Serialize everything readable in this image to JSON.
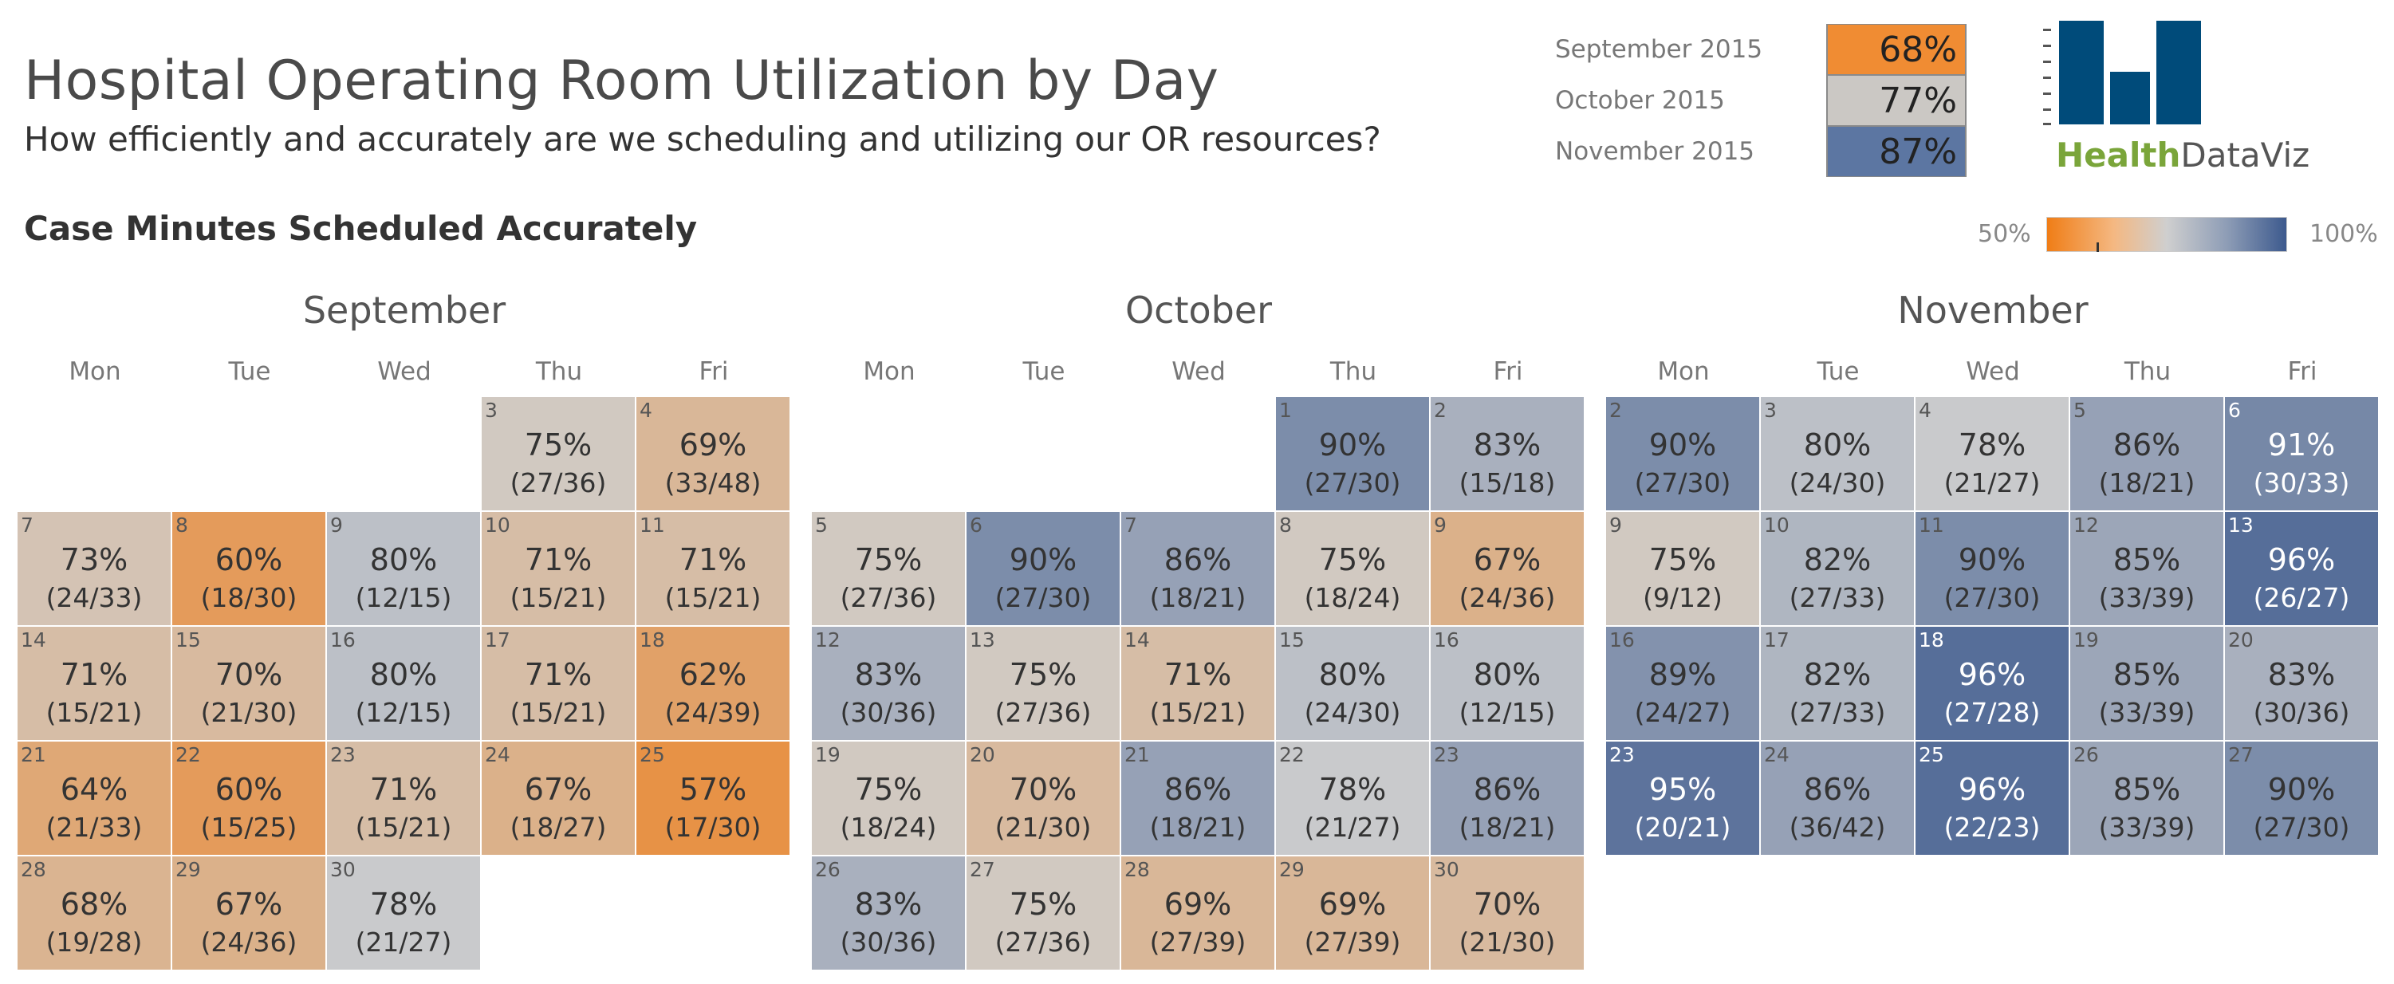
{
  "header": {
    "title": "Hospital Operating Room Utilization by Day",
    "subtitle": "How efficiently and accurately are we scheduling and utilizing our OR resources?",
    "section_title": "Case Minutes Scheduled Accurately"
  },
  "summary": [
    {
      "label": "September 2015",
      "value": "68%",
      "color": "#f08c33"
    },
    {
      "label": "October 2015",
      "value": "77%",
      "color": "#cbc8c4"
    },
    {
      "label": "November 2015",
      "value": "87%",
      "color": "#5c76a2"
    }
  ],
  "logo": {
    "word1": "Health",
    "word2": "DataViz",
    "bar_color": "#004b7a"
  },
  "legend": {
    "min_label": "50%",
    "max_label": "100%"
  },
  "weekdays": [
    "Mon",
    "Tue",
    "Wed",
    "Thu",
    "Fri"
  ],
  "colors": {
    "low": "#f07d16",
    "mid": "#cfcfcf",
    "high": "#3d5a8e"
  },
  "chart_data": {
    "type": "heatmap",
    "title": "Case Minutes Scheduled Accurately",
    "color_scale": [
      50,
      100
    ],
    "months": [
      {
        "name": "September",
        "days": [
          {
            "day": 3,
            "week": 0,
            "dow": 3,
            "pct": "75%",
            "value": 75,
            "frac": "(27/36)"
          },
          {
            "day": 4,
            "week": 0,
            "dow": 4,
            "pct": "69%",
            "value": 69,
            "frac": "(33/48)"
          },
          {
            "day": 7,
            "week": 1,
            "dow": 0,
            "pct": "73%",
            "value": 73,
            "frac": "(24/33)"
          },
          {
            "day": 8,
            "week": 1,
            "dow": 1,
            "pct": "60%",
            "value": 60,
            "frac": "(18/30)"
          },
          {
            "day": 9,
            "week": 1,
            "dow": 2,
            "pct": "80%",
            "value": 80,
            "frac": "(12/15)"
          },
          {
            "day": 10,
            "week": 1,
            "dow": 3,
            "pct": "71%",
            "value": 71,
            "frac": "(15/21)"
          },
          {
            "day": 11,
            "week": 1,
            "dow": 4,
            "pct": "71%",
            "value": 71,
            "frac": "(15/21)"
          },
          {
            "day": 14,
            "week": 2,
            "dow": 0,
            "pct": "71%",
            "value": 71,
            "frac": "(15/21)"
          },
          {
            "day": 15,
            "week": 2,
            "dow": 1,
            "pct": "70%",
            "value": 70,
            "frac": "(21/30)"
          },
          {
            "day": 16,
            "week": 2,
            "dow": 2,
            "pct": "80%",
            "value": 80,
            "frac": "(12/15)"
          },
          {
            "day": 17,
            "week": 2,
            "dow": 3,
            "pct": "71%",
            "value": 71,
            "frac": "(15/21)"
          },
          {
            "day": 18,
            "week": 2,
            "dow": 4,
            "pct": "62%",
            "value": 62,
            "frac": "(24/39)"
          },
          {
            "day": 21,
            "week": 3,
            "dow": 0,
            "pct": "64%",
            "value": 64,
            "frac": "(21/33)"
          },
          {
            "day": 22,
            "week": 3,
            "dow": 1,
            "pct": "60%",
            "value": 60,
            "frac": "(15/25)"
          },
          {
            "day": 23,
            "week": 3,
            "dow": 2,
            "pct": "71%",
            "value": 71,
            "frac": "(15/21)"
          },
          {
            "day": 24,
            "week": 3,
            "dow": 3,
            "pct": "67%",
            "value": 67,
            "frac": "(18/27)"
          },
          {
            "day": 25,
            "week": 3,
            "dow": 4,
            "pct": "57%",
            "value": 57,
            "frac": "(17/30)"
          },
          {
            "day": 28,
            "week": 4,
            "dow": 0,
            "pct": "68%",
            "value": 68,
            "frac": "(19/28)"
          },
          {
            "day": 29,
            "week": 4,
            "dow": 1,
            "pct": "67%",
            "value": 67,
            "frac": "(24/36)"
          },
          {
            "day": 30,
            "week": 4,
            "dow": 2,
            "pct": "78%",
            "value": 78,
            "frac": "(21/27)"
          }
        ]
      },
      {
        "name": "October",
        "days": [
          {
            "day": 1,
            "week": 0,
            "dow": 3,
            "pct": "90%",
            "value": 90,
            "frac": "(27/30)"
          },
          {
            "day": 2,
            "week": 0,
            "dow": 4,
            "pct": "83%",
            "value": 83,
            "frac": "(15/18)"
          },
          {
            "day": 5,
            "week": 1,
            "dow": 0,
            "pct": "75%",
            "value": 75,
            "frac": "(27/36)"
          },
          {
            "day": 6,
            "week": 1,
            "dow": 1,
            "pct": "90%",
            "value": 90,
            "frac": "(27/30)"
          },
          {
            "day": 7,
            "week": 1,
            "dow": 2,
            "pct": "86%",
            "value": 86,
            "frac": "(18/21)"
          },
          {
            "day": 8,
            "week": 1,
            "dow": 3,
            "pct": "75%",
            "value": 75,
            "frac": "(18/24)"
          },
          {
            "day": 9,
            "week": 1,
            "dow": 4,
            "pct": "67%",
            "value": 67,
            "frac": "(24/36)"
          },
          {
            "day": 12,
            "week": 2,
            "dow": 0,
            "pct": "83%",
            "value": 83,
            "frac": "(30/36)"
          },
          {
            "day": 13,
            "week": 2,
            "dow": 1,
            "pct": "75%",
            "value": 75,
            "frac": "(27/36)"
          },
          {
            "day": 14,
            "week": 2,
            "dow": 2,
            "pct": "71%",
            "value": 71,
            "frac": "(15/21)"
          },
          {
            "day": 15,
            "week": 2,
            "dow": 3,
            "pct": "80%",
            "value": 80,
            "frac": "(24/30)"
          },
          {
            "day": 16,
            "week": 2,
            "dow": 4,
            "pct": "80%",
            "value": 80,
            "frac": "(12/15)"
          },
          {
            "day": 19,
            "week": 3,
            "dow": 0,
            "pct": "75%",
            "value": 75,
            "frac": "(18/24)"
          },
          {
            "day": 20,
            "week": 3,
            "dow": 1,
            "pct": "70%",
            "value": 70,
            "frac": "(21/30)"
          },
          {
            "day": 21,
            "week": 3,
            "dow": 2,
            "pct": "86%",
            "value": 86,
            "frac": "(18/21)"
          },
          {
            "day": 22,
            "week": 3,
            "dow": 3,
            "pct": "78%",
            "value": 78,
            "frac": "(21/27)"
          },
          {
            "day": 23,
            "week": 3,
            "dow": 4,
            "pct": "86%",
            "value": 86,
            "frac": "(18/21)"
          },
          {
            "day": 26,
            "week": 4,
            "dow": 0,
            "pct": "83%",
            "value": 83,
            "frac": "(30/36)"
          },
          {
            "day": 27,
            "week": 4,
            "dow": 1,
            "pct": "75%",
            "value": 75,
            "frac": "(27/36)"
          },
          {
            "day": 28,
            "week": 4,
            "dow": 2,
            "pct": "69%",
            "value": 69,
            "frac": "(27/39)"
          },
          {
            "day": 29,
            "week": 4,
            "dow": 3,
            "pct": "69%",
            "value": 69,
            "frac": "(27/39)"
          },
          {
            "day": 30,
            "week": 4,
            "dow": 4,
            "pct": "70%",
            "value": 70,
            "frac": "(21/30)"
          }
        ]
      },
      {
        "name": "November",
        "days": [
          {
            "day": 2,
            "week": 0,
            "dow": 0,
            "pct": "90%",
            "value": 90,
            "frac": "(27/30)"
          },
          {
            "day": 3,
            "week": 0,
            "dow": 1,
            "pct": "80%",
            "value": 80,
            "frac": "(24/30)"
          },
          {
            "day": 4,
            "week": 0,
            "dow": 2,
            "pct": "78%",
            "value": 78,
            "frac": "(21/27)"
          },
          {
            "day": 5,
            "week": 0,
            "dow": 3,
            "pct": "86%",
            "value": 86,
            "frac": "(18/21)"
          },
          {
            "day": 6,
            "week": 0,
            "dow": 4,
            "pct": "91%",
            "value": 91,
            "frac": "(30/33)"
          },
          {
            "day": 9,
            "week": 1,
            "dow": 0,
            "pct": "75%",
            "value": 75,
            "frac": "(9/12)"
          },
          {
            "day": 10,
            "week": 1,
            "dow": 1,
            "pct": "82%",
            "value": 82,
            "frac": "(27/33)"
          },
          {
            "day": 11,
            "week": 1,
            "dow": 2,
            "pct": "90%",
            "value": 90,
            "frac": "(27/30)"
          },
          {
            "day": 12,
            "week": 1,
            "dow": 3,
            "pct": "85%",
            "value": 85,
            "frac": "(33/39)"
          },
          {
            "day": 13,
            "week": 1,
            "dow": 4,
            "pct": "96%",
            "value": 96,
            "frac": "(26/27)"
          },
          {
            "day": 16,
            "week": 2,
            "dow": 0,
            "pct": "89%",
            "value": 89,
            "frac": "(24/27)"
          },
          {
            "day": 17,
            "week": 2,
            "dow": 1,
            "pct": "82%",
            "value": 82,
            "frac": "(27/33)"
          },
          {
            "day": 18,
            "week": 2,
            "dow": 2,
            "pct": "96%",
            "value": 96,
            "frac": "(27/28)"
          },
          {
            "day": 19,
            "week": 2,
            "dow": 3,
            "pct": "85%",
            "value": 85,
            "frac": "(33/39)"
          },
          {
            "day": 20,
            "week": 2,
            "dow": 4,
            "pct": "83%",
            "value": 83,
            "frac": "(30/36)"
          },
          {
            "day": 23,
            "week": 3,
            "dow": 0,
            "pct": "95%",
            "value": 95,
            "frac": "(20/21)"
          },
          {
            "day": 24,
            "week": 3,
            "dow": 1,
            "pct": "86%",
            "value": 86,
            "frac": "(36/42)"
          },
          {
            "day": 25,
            "week": 3,
            "dow": 2,
            "pct": "96%",
            "value": 96,
            "frac": "(22/23)"
          },
          {
            "day": 26,
            "week": 3,
            "dow": 3,
            "pct": "85%",
            "value": 85,
            "frac": "(33/39)"
          },
          {
            "day": 27,
            "week": 3,
            "dow": 4,
            "pct": "90%",
            "value": 90,
            "frac": "(27/30)"
          }
        ]
      }
    ]
  }
}
